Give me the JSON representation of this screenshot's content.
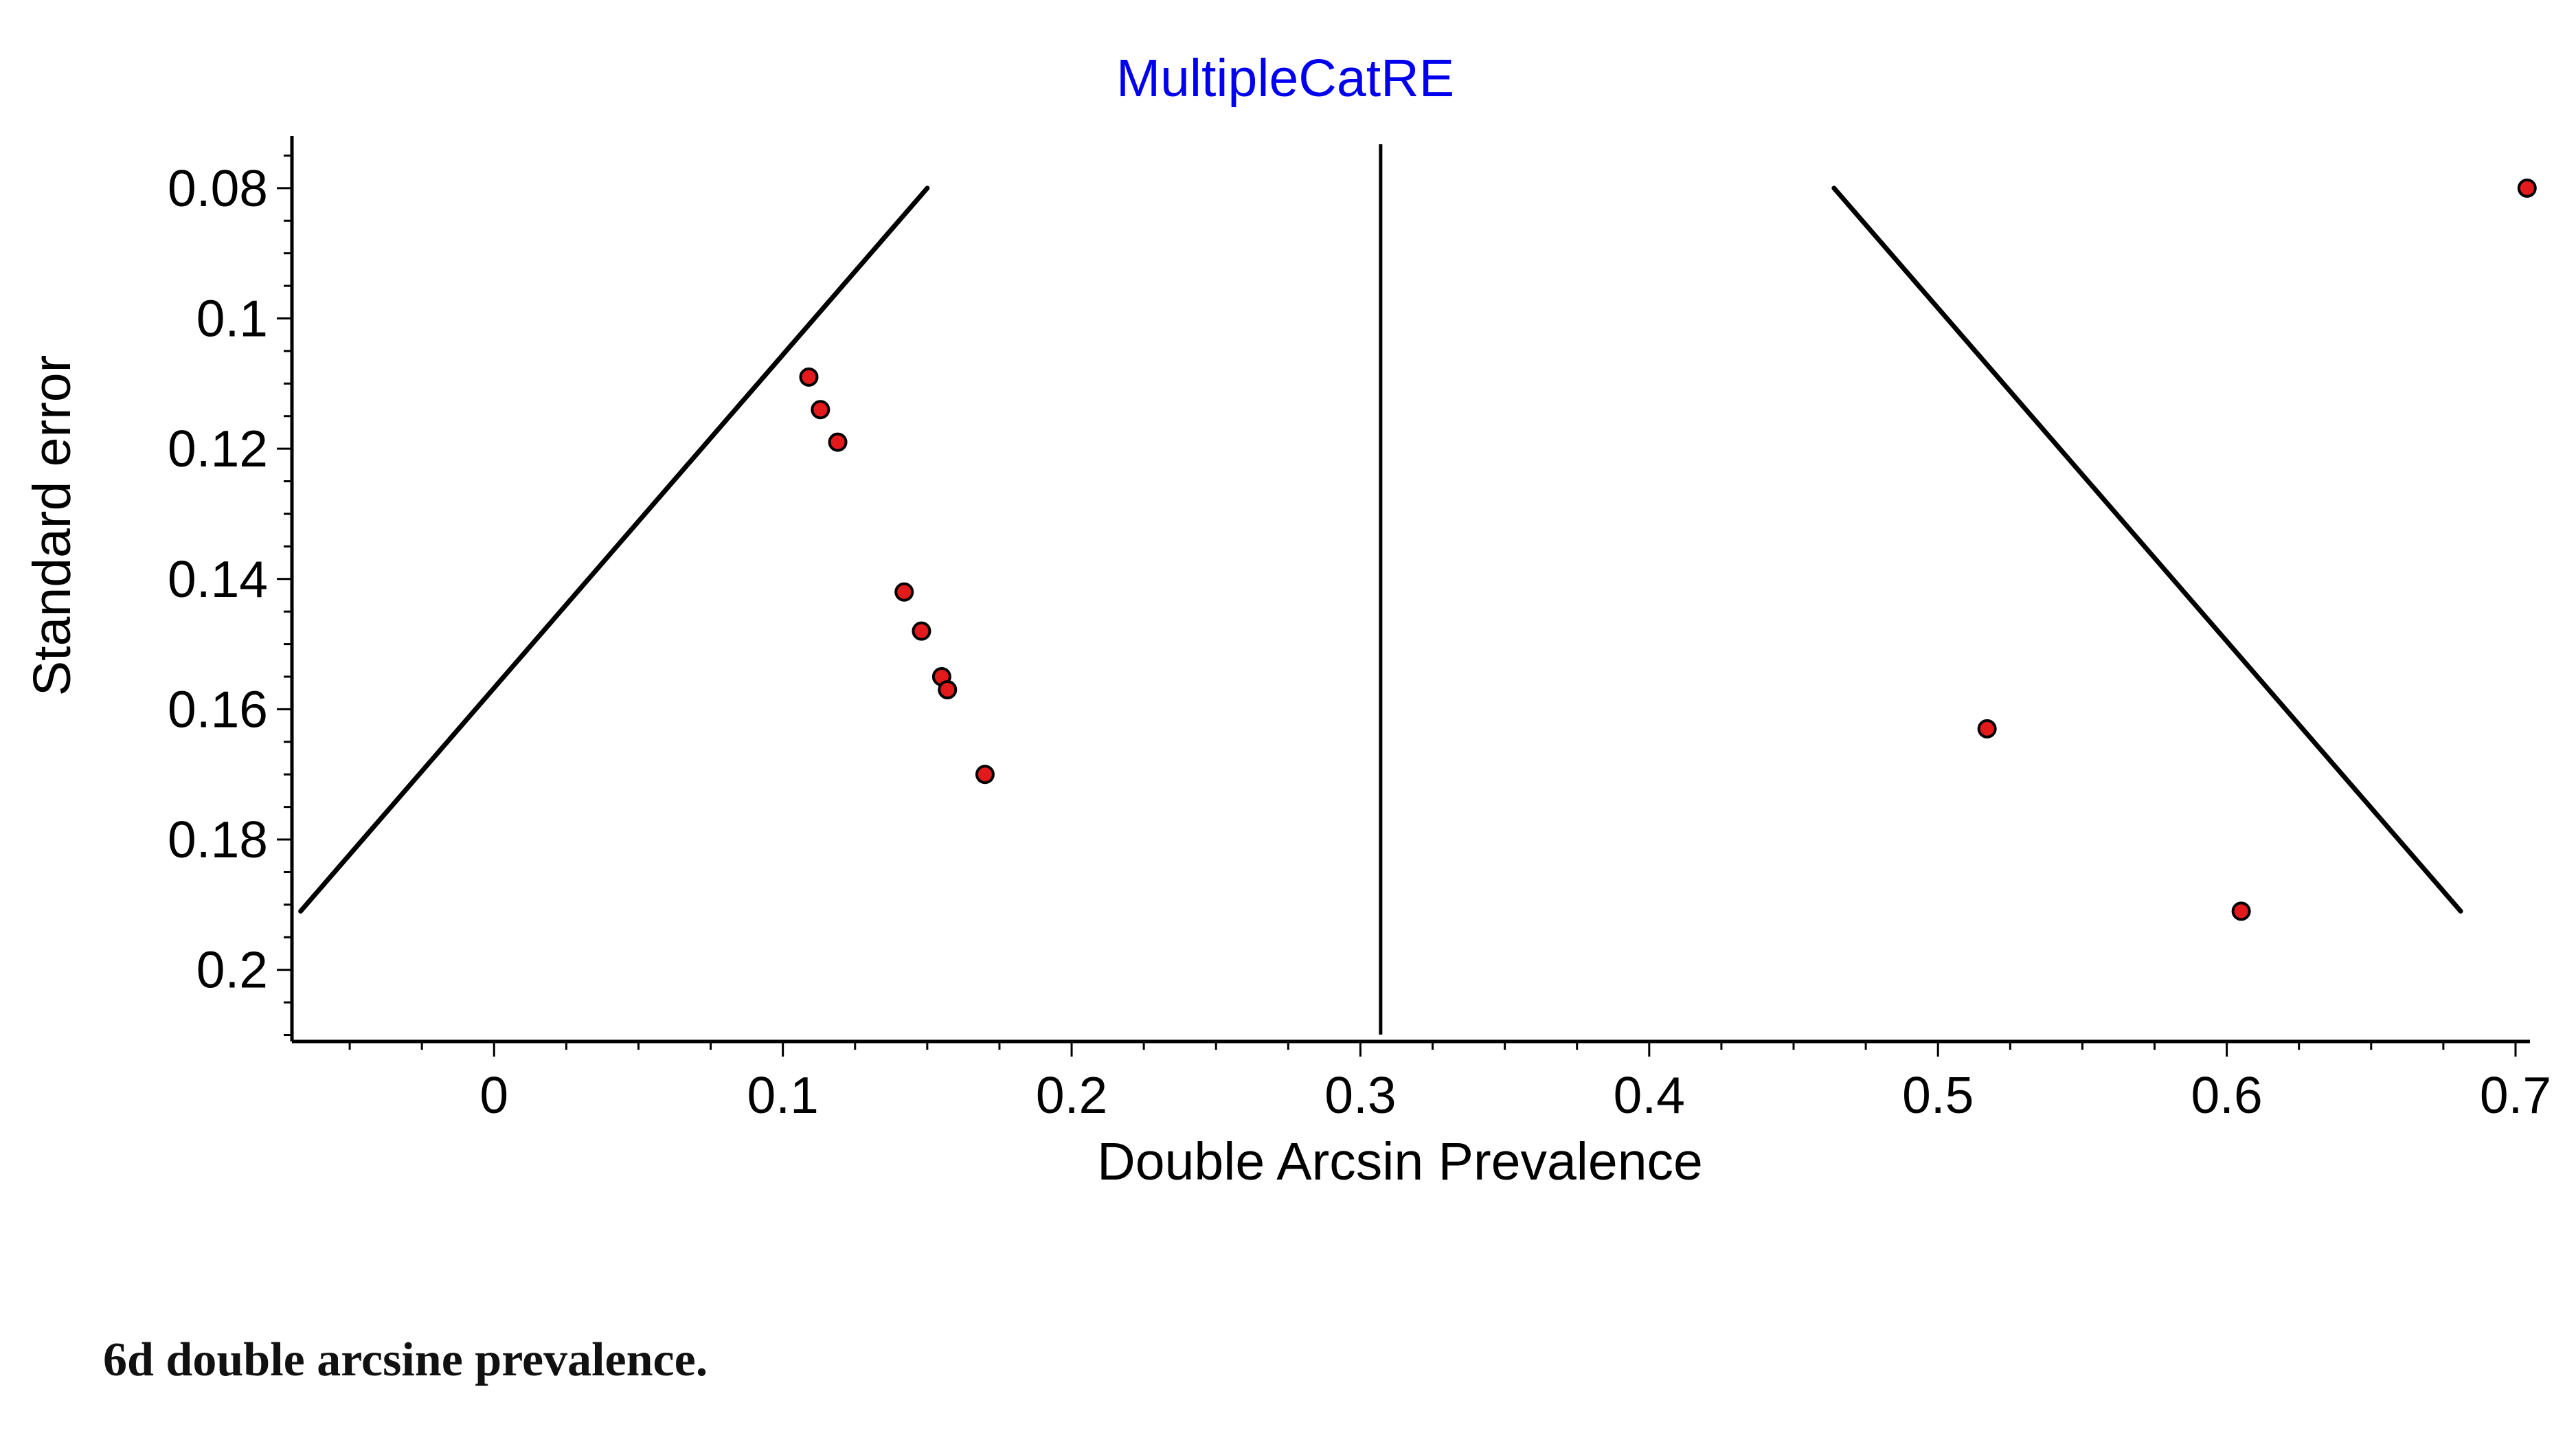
{
  "caption": "6d double arcsine prevalence.",
  "chart_data": {
    "type": "scatter",
    "title": "MultipleCatRE",
    "title_color": "#0000ee",
    "xlabel": "Double Arcsin Prevalence",
    "ylabel": "Standard error",
    "xlim": [
      -0.07,
      0.705
    ],
    "ylim": [
      0.072,
      0.211
    ],
    "y_inverted": true,
    "x_ticks": [
      0,
      0.1,
      0.2,
      0.3,
      0.4,
      0.5,
      0.6,
      0.7
    ],
    "x_tick_labels": [
      "0",
      "0.1",
      "0.2",
      "0.3",
      "0.4",
      "0.5",
      "0.6",
      "0.7"
    ],
    "y_ticks": [
      0.08,
      0.1,
      0.12,
      0.14,
      0.16,
      0.18,
      0.2
    ],
    "y_tick_labels": [
      "0.08",
      "0.1",
      "0.12",
      "0.14",
      "0.16",
      "0.18",
      "0.2"
    ],
    "grid": false,
    "legend": "none",
    "point_color": "#e31a1c",
    "points": [
      {
        "x": 0.109,
        "y": 0.109
      },
      {
        "x": 0.113,
        "y": 0.114
      },
      {
        "x": 0.119,
        "y": 0.119
      },
      {
        "x": 0.142,
        "y": 0.142
      },
      {
        "x": 0.148,
        "y": 0.148
      },
      {
        "x": 0.155,
        "y": 0.155
      },
      {
        "x": 0.157,
        "y": 0.157
      },
      {
        "x": 0.17,
        "y": 0.17
      },
      {
        "x": 0.517,
        "y": 0.163
      },
      {
        "x": 0.605,
        "y": 0.191
      },
      {
        "x": 0.704,
        "y": 0.08
      }
    ],
    "pooled_estimate": 0.307,
    "funnel_left": [
      [
        -0.067,
        0.191
      ],
      [
        0.15,
        0.08
      ]
    ],
    "funnel_right": [
      [
        0.464,
        0.08
      ],
      [
        0.681,
        0.191
      ]
    ]
  }
}
